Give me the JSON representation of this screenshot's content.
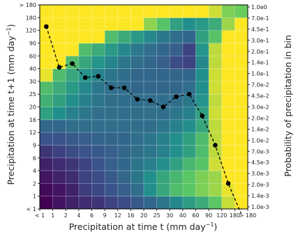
{
  "chart_data": {
    "type": "heatmap",
    "xlabel": "Precipitation at time t (mm day",
    "ylabel": "Precipitation at time t+1 (mm day",
    "unit_exponent": "−1",
    "unit_close": ")",
    "colorbar_label": "Probability of precipitation in bin",
    "x_ticks": [
      "< 1",
      "1",
      "2",
      "4",
      "6",
      "9",
      "12",
      "16",
      "20",
      "25",
      "30",
      "40",
      "60",
      "90",
      "120",
      "180",
      "> 180"
    ],
    "y_ticks": [
      "< 1",
      "1",
      "2",
      "4",
      "6",
      "9",
      "12",
      "16",
      "20",
      "25",
      "30",
      "40",
      "60",
      "90",
      "120",
      "180",
      "> 180"
    ],
    "colorbar_ticks": [
      "1.0e0",
      "7.0e-1",
      "4.5e-1",
      "3.0e-1",
      "2.0e-1",
      "1.4e-1",
      "1.0e-1",
      "7.0e-2",
      "4.5e-2",
      "3.0e-2",
      "2.0e-2",
      "1.4e-2",
      "1.0e-2",
      "7.0e-3",
      "4.5e-3",
      "3.0e-3",
      "2.0e-3",
      "1.4e-3",
      "1.0e-3"
    ],
    "color_scale": "log",
    "colorbar_range": [
      0.001,
      1.0
    ],
    "colormap": [
      "#440154",
      "#3b528b",
      "#21918c",
      "#5ec962",
      "#fde725"
    ],
    "grid": true,
    "matrix_note": "rows from y bin '< 1' (bottom) to '> 180' (top); columns from x bin '< 1' to '> 180'; value = probability of precipitation in bin; cells shown in yellow outside the occupied region are at the top of the scale",
    "matrix": [
      [
        0.0009,
        0.0015,
        0.002,
        0.0025,
        0.003,
        0.004,
        0.005,
        0.007,
        0.01,
        0.015,
        0.025,
        0.045,
        0.07,
        0.16,
        0.55,
        1.0
      ],
      [
        0.0012,
        0.0015,
        0.002,
        0.0035,
        0.0045,
        0.006,
        0.008,
        0.012,
        0.03,
        0.06,
        0.12,
        0.16,
        0.25,
        0.35,
        0.8,
        1.0
      ],
      [
        0.0015,
        0.002,
        0.0025,
        0.004,
        0.005,
        0.007,
        0.01,
        0.015,
        0.03,
        0.06,
        0.1,
        0.16,
        0.25,
        0.35,
        1.0,
        1.0
      ],
      [
        0.002,
        0.0025,
        0.003,
        0.004,
        0.006,
        0.008,
        0.01,
        0.015,
        0.02,
        0.03,
        0.05,
        0.1,
        0.15,
        0.6,
        1.0,
        1.0
      ],
      [
        0.003,
        0.004,
        0.005,
        0.006,
        0.007,
        0.008,
        0.01,
        0.012,
        0.015,
        0.02,
        0.03,
        0.05,
        0.12,
        0.5,
        1.0,
        1.0
      ],
      [
        0.006,
        0.006,
        0.007,
        0.008,
        0.009,
        0.01,
        0.01,
        0.012,
        0.015,
        0.02,
        0.03,
        0.05,
        0.12,
        0.5,
        1.0,
        1.0
      ],
      [
        0.01,
        0.01,
        0.012,
        0.012,
        0.012,
        0.012,
        0.012,
        0.012,
        0.012,
        0.015,
        0.02,
        0.03,
        0.06,
        0.5,
        1.0,
        1.0
      ],
      [
        0.05,
        0.03,
        0.02,
        0.015,
        0.012,
        0.012,
        0.012,
        0.012,
        0.012,
        0.012,
        0.015,
        0.02,
        0.05,
        0.6,
        1.0,
        1.0
      ],
      [
        0.08,
        0.05,
        0.03,
        0.02,
        0.015,
        0.012,
        0.012,
        0.012,
        0.012,
        0.012,
        0.012,
        0.015,
        0.035,
        0.5,
        1.0,
        1.0
      ],
      [
        0.12,
        0.07,
        0.04,
        0.025,
        0.015,
        0.012,
        0.012,
        0.01,
        0.01,
        0.01,
        0.01,
        0.012,
        0.03,
        0.6,
        1.0,
        1.0
      ],
      [
        0.8,
        0.12,
        0.06,
        0.035,
        0.022,
        0.015,
        0.012,
        0.01,
        0.01,
        0.01,
        0.01,
        0.01,
        0.03,
        0.6,
        1.0,
        1.0
      ],
      [
        1.0,
        1.0,
        0.12,
        0.06,
        0.035,
        0.022,
        0.015,
        0.012,
        0.01,
        0.008,
        0.005,
        0.004,
        0.025,
        0.5,
        1.0,
        1.0
      ],
      [
        1.0,
        1.0,
        1.0,
        0.12,
        0.07,
        0.04,
        0.025,
        0.016,
        0.012,
        0.01,
        0.008,
        0.004,
        0.035,
        0.5,
        1.0,
        1.0
      ],
      [
        1.0,
        1.0,
        1.0,
        1.0,
        1.0,
        0.12,
        0.07,
        0.04,
        0.025,
        0.016,
        0.012,
        0.01,
        0.05,
        0.15,
        1.0,
        1.0
      ],
      [
        1.0,
        1.0,
        1.0,
        1.0,
        1.0,
        1.0,
        1.0,
        1.0,
        0.3,
        0.15,
        0.05,
        0.03,
        0.04,
        0.07,
        0.35,
        1.0
      ],
      [
        1.0,
        1.0,
        1.0,
        1.0,
        1.0,
        1.0,
        1.0,
        1.0,
        1.0,
        1.0,
        1.0,
        1.0,
        1.0,
        0.6,
        0.25,
        0.2
      ]
    ],
    "series": [
      {
        "style": "dashed line with black circle markers",
        "bin_index_x": [
          0.5,
          1.5,
          2.5,
          3.5,
          4.5,
          5.5,
          6.5,
          7.5,
          8.5,
          9.5,
          10.5,
          11.5,
          12.5,
          13.5,
          14.5,
          15.5
        ],
        "bin_index_y": [
          14.3,
          11.1,
          11.4,
          10.3,
          10.4,
          9.5,
          9.5,
          8.6,
          8.5,
          8.0,
          8.8,
          9.0,
          7.3,
          5.0,
          2.0,
          -0.4
        ]
      }
    ]
  }
}
